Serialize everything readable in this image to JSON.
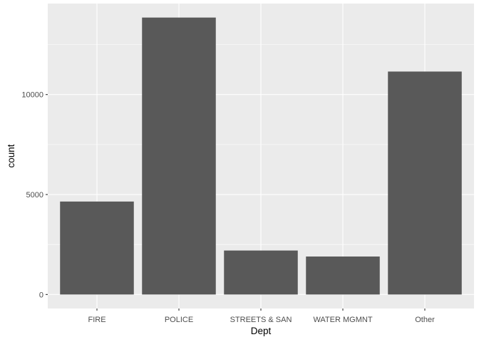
{
  "chart_data": {
    "type": "bar",
    "categories": [
      "FIRE",
      "POLICE",
      "STREETS & SAN",
      "WATER MGMNT",
      "Other"
    ],
    "values": [
      4650,
      13850,
      2200,
      1900,
      11150
    ],
    "xlabel": "Dept",
    "ylabel": "count",
    "ylim": [
      -700,
      14550
    ],
    "yticks": [
      0,
      5000,
      10000
    ],
    "ytick_labels": [
      "0",
      "5000",
      "10000"
    ],
    "grid": true,
    "legend": "none"
  },
  "colors": {
    "panel_bg": "#ebebeb",
    "grid_major": "#ffffff",
    "bar_fill": "#595959",
    "tick_text": "#4d4d4d",
    "title_text": "#000000"
  }
}
